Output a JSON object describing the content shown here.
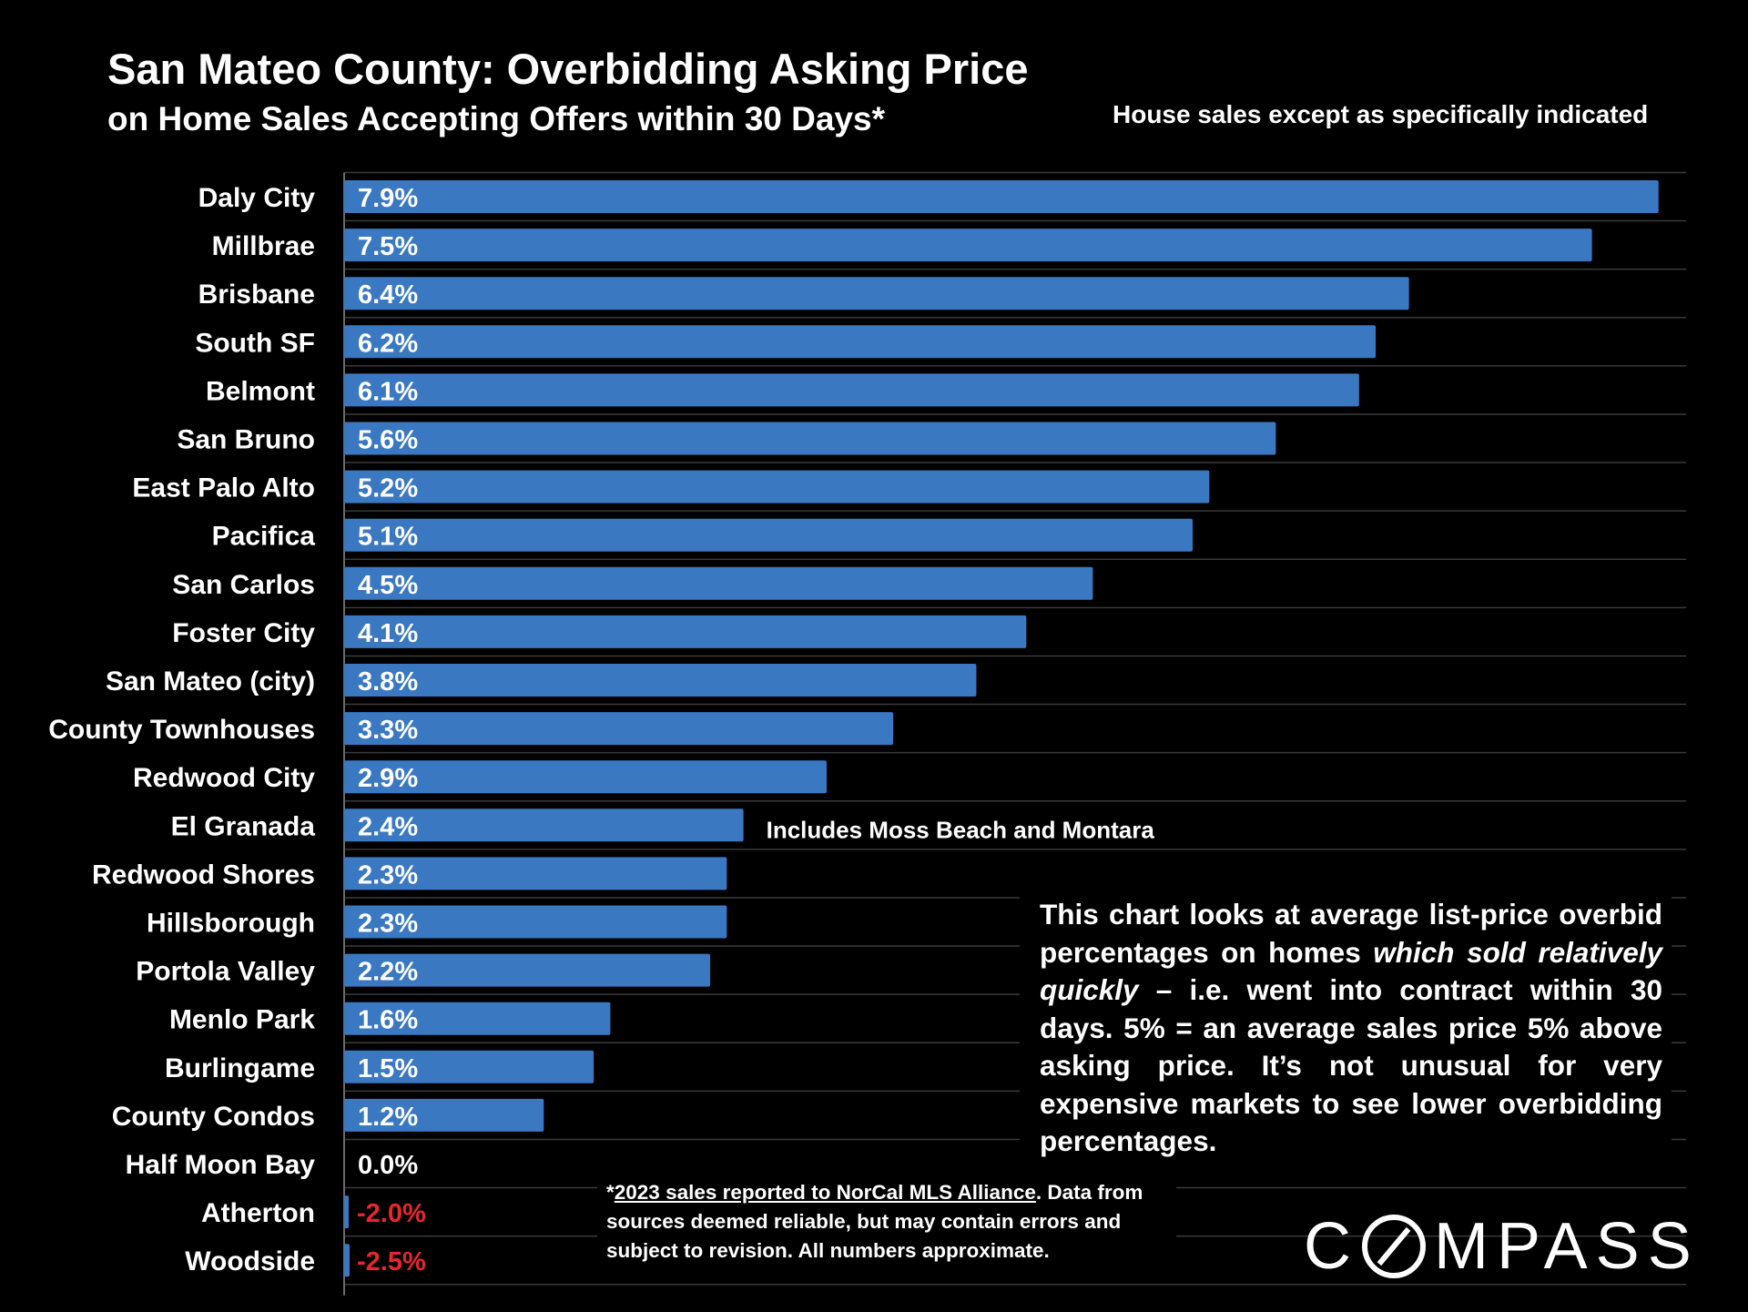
{
  "chart_data": {
    "type": "bar",
    "orientation": "horizontal",
    "title": "San Mateo County: Overbidding Asking Price",
    "subtitle": "on Home Sales Accepting Offers within 30 Days*",
    "note_top": "House sales except as specifically indicated",
    "xlim": [
      0,
      8
    ],
    "grid": true,
    "bar_color": "#3a78c2",
    "negative_label_color": "#e8262d",
    "categories": [
      "Daly City",
      "Millbrae",
      "Brisbane",
      "South SF",
      "Belmont",
      "San Bruno",
      "East Palo Alto",
      "Pacifica",
      "San Carlos",
      "Foster City",
      "San Mateo (city)",
      "County Townhouses",
      "Redwood City",
      "El Granada",
      "Redwood Shores",
      "Hillsborough",
      "Portola Valley",
      "Menlo Park",
      "Burlingame",
      "County Condos",
      "Half Moon Bay",
      "Atherton",
      "Woodside"
    ],
    "values": [
      7.9,
      7.5,
      6.4,
      6.2,
      6.1,
      5.6,
      5.2,
      5.1,
      4.5,
      4.1,
      3.8,
      3.3,
      2.9,
      2.4,
      2.3,
      2.3,
      2.2,
      1.6,
      1.5,
      1.2,
      0.0,
      -2.0,
      -2.5
    ],
    "value_labels": [
      "7.9%",
      "7.5%",
      "6.4%",
      "6.2%",
      "6.1%",
      "5.6%",
      "5.2%",
      "5.1%",
      "4.5%",
      "4.1%",
      "3.8%",
      "3.3%",
      "2.9%",
      "2.4%",
      "2.3%",
      "2.3%",
      "2.2%",
      "1.6%",
      "1.5%",
      "1.2%",
      "0.0%",
      "-2.0%",
      "-2.5%"
    ],
    "annotations": [
      {
        "category": "El Granada",
        "text": "Includes Moss Beach and Montara"
      }
    ]
  },
  "explanation": {
    "part1": "This chart looks at average list-price overbid percentages on homes ",
    "italic": "which sold relatively quickly",
    "part2": " – i.e. went into contract within 30 days. 5% = an average sales price 5% above asking price. It’s not unusual for very expensive markets to see lower overbidding percentages."
  },
  "footnote": {
    "star": "*",
    "underlined": "2023 sales reported to NorCal MLS Alliance",
    "rest": ". Data from sources deemed reliable, but may contain errors and subject to revision. All numbers approximate."
  },
  "logo": {
    "left": "C",
    "right": "MPASS"
  }
}
